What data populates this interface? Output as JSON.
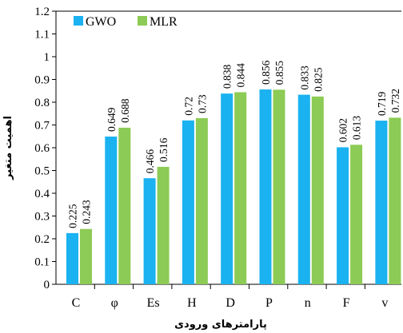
{
  "chart_data": {
    "type": "bar",
    "categories": [
      "C",
      "φ",
      "Es",
      "H",
      "D",
      "P",
      "n",
      "F",
      "v"
    ],
    "series": [
      {
        "name": "GWO",
        "color": "#1AB2F0",
        "values": [
          0.225,
          0.649,
          0.466,
          0.72,
          0.838,
          0.856,
          0.833,
          0.602,
          0.719
        ]
      },
      {
        "name": "MLR",
        "color": "#8CCB55",
        "values": [
          0.243,
          0.688,
          0.516,
          0.73,
          0.844,
          0.855,
          0.825,
          0.613,
          0.732
        ]
      }
    ],
    "value_labels": [
      [
        "0.225",
        "0.649",
        "0.466",
        "0.72",
        "0.838",
        "0.856",
        "0.833",
        "0.602",
        "0.719"
      ],
      [
        "0.243",
        "0.688",
        "0.516",
        "0.73",
        "0.844",
        "0.855",
        "0.825",
        "0.613",
        "0.732"
      ]
    ],
    "yticks": [
      "0",
      "0.1",
      "0.2",
      "0.3",
      "0.4",
      "0.5",
      "0.6",
      "0.7",
      "0.8",
      "0.9",
      "1",
      "1.1",
      "1.2"
    ],
    "ylim": [
      0,
      1.2
    ],
    "xlabel": "پارامترهای ورودی",
    "ylabel": "اهمیت متغیر",
    "legend": "top-left",
    "grid": false
  }
}
